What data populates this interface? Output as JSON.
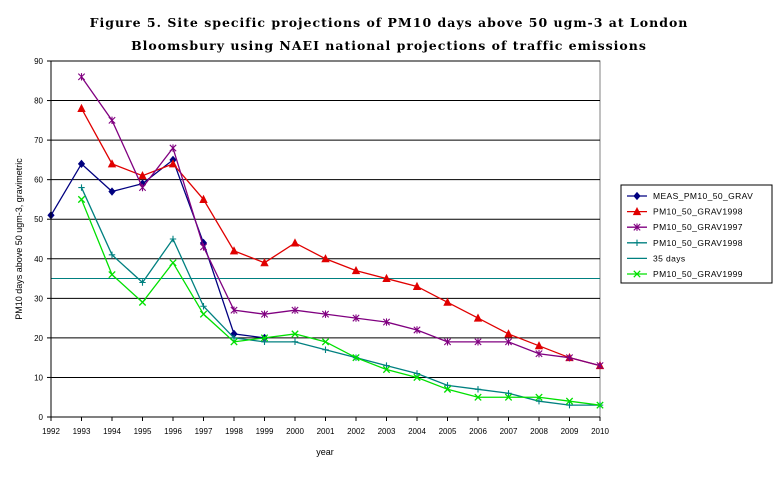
{
  "chart_data": {
    "type": "line",
    "title_lines": [
      "Figure 5. Site specific projections of PM10 days above 50 ugm-3 at London",
      "Bloomsbury using NAEI national projections of traffic emissions"
    ],
    "xlabel": "year",
    "ylabel": "PM10 days above 50 ugm-3, gravimetric",
    "ylim": [
      0,
      90
    ],
    "yticks": [
      0,
      10,
      20,
      30,
      40,
      50,
      60,
      70,
      80,
      90
    ],
    "x": [
      1992,
      1993,
      1994,
      1995,
      1996,
      1997,
      1998,
      1999,
      2000,
      2001,
      2002,
      2003,
      2004,
      2005,
      2006,
      2007,
      2008,
      2009,
      2010
    ],
    "grid": "horizontal",
    "legend_position": "right",
    "series": [
      {
        "name": "MEAS_PM10_50_GRAV",
        "color": "#000080",
        "marker": "diamond",
        "x": [
          1992,
          1993,
          1994,
          1995,
          1996,
          1997,
          1998,
          1999
        ],
        "values": [
          51,
          64,
          57,
          59,
          65,
          44,
          21,
          20
        ]
      },
      {
        "name": "PM10_50_GRAV1998",
        "color": "#e00000",
        "marker": "triangle",
        "x": [
          1993,
          1994,
          1995,
          1996,
          1997,
          1998,
          1999,
          2000,
          2001,
          2002,
          2003,
          2004,
          2005,
          2006,
          2007,
          2008,
          2009,
          2010
        ],
        "values": [
          78,
          64,
          61,
          64,
          55,
          42,
          39,
          44,
          40,
          37,
          35,
          33,
          29,
          25,
          21,
          18,
          15,
          13
        ]
      },
      {
        "name": "PM10_50_GRAV1997",
        "color": "#800080",
        "marker": "star",
        "x": [
          1993,
          1994,
          1995,
          1996,
          1997,
          1998,
          1999,
          2000,
          2001,
          2002,
          2003,
          2004,
          2005,
          2006,
          2007,
          2008,
          2009,
          2010
        ],
        "values": [
          86,
          75,
          58,
          68,
          43,
          27,
          26,
          27,
          26,
          25,
          24,
          22,
          19,
          19,
          19,
          16,
          15,
          13
        ]
      },
      {
        "name": "PM10_50_GRAV1998",
        "color": "#008080",
        "marker": "plus",
        "x": [
          1993,
          1994,
          1995,
          1996,
          1997,
          1998,
          1999,
          2000,
          2001,
          2002,
          2003,
          2004,
          2005,
          2006,
          2007,
          2008,
          2009,
          2010
        ],
        "values": [
          58,
          41,
          34,
          45,
          28,
          20,
          19,
          19,
          17,
          15,
          13,
          11,
          8,
          7,
          6,
          4,
          3,
          3
        ]
      },
      {
        "name": "35 days",
        "color": "#008080",
        "marker": "none",
        "x": [
          1992,
          2010
        ],
        "values": [
          35,
          35
        ]
      },
      {
        "name": "PM10_50_GRAV1999",
        "color": "#00e000",
        "marker": "x",
        "x": [
          1993,
          1994,
          1995,
          1996,
          1997,
          1998,
          1999,
          2000,
          2001,
          2002,
          2003,
          2004,
          2005,
          2006,
          2007,
          2008,
          2009,
          2010
        ],
        "values": [
          55,
          36,
          29,
          39,
          26,
          19,
          20,
          21,
          19,
          15,
          12,
          10,
          7,
          5,
          5,
          5,
          4,
          3
        ]
      }
    ]
  }
}
